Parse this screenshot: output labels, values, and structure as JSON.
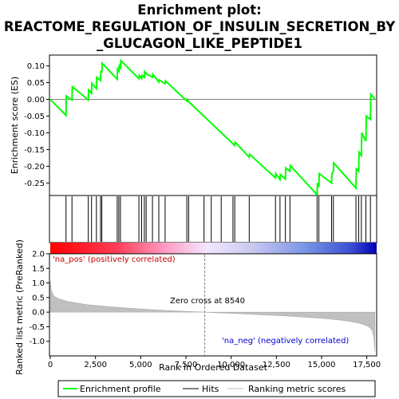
{
  "title_line1": "Enrichment plot:",
  "title_line2": "REACTOME_REGULATION_OF_INSULIN_SECRETION_BY",
  "title_line3": "_GLUCAGON_LIKE_PEPTIDE1",
  "chart_data": [
    {
      "type": "line",
      "panel": "enrichment-score",
      "ylabel": "Enrichment score (ES)",
      "xlim": [
        0,
        18000
      ],
      "ylim": [
        -0.285,
        0.13
      ],
      "yticks": [
        0.1,
        0.05,
        0.0,
        -0.05,
        -0.1,
        -0.15,
        -0.2,
        -0.25
      ],
      "ytick_labels": [
        "0.10",
        "0.05",
        "0.00",
        "-0.05",
        "-0.10",
        "-0.15",
        "-0.20",
        "-0.25"
      ],
      "series": [
        {
          "name": "Enrichment profile",
          "color": "#00ff00",
          "x": [
            0,
            870,
            880,
            1200,
            1220,
            2100,
            2120,
            2280,
            2300,
            2550,
            2570,
            2780,
            2800,
            2850,
            2870,
            3700,
            3720,
            3790,
            3810,
            3880,
            3900,
            4900,
            4920,
            5050,
            5070,
            5200,
            5220,
            5300,
            5320,
            5650,
            5670,
            6000,
            6020,
            6350,
            6370,
            7550,
            7570,
            7650,
            7670,
            10200,
            10220,
            11000,
            11020,
            12450,
            12470,
            12700,
            12720,
            13000,
            13020,
            13250,
            13270,
            14750,
            14770,
            14850,
            14870,
            15550,
            15570,
            15650,
            15670,
            16900,
            16920,
            17050,
            17070,
            17200,
            17220,
            17450,
            17470,
            17700,
            17720,
            17950
          ],
          "y": [
            0.0,
            -0.048,
            0.01,
            -0.002,
            0.038,
            -0.002,
            0.028,
            0.018,
            0.048,
            0.032,
            0.066,
            0.056,
            0.086,
            0.08,
            0.108,
            0.06,
            0.09,
            0.084,
            0.1,
            0.094,
            0.116,
            0.062,
            0.072,
            0.062,
            0.072,
            0.066,
            0.083,
            0.077,
            0.076,
            0.066,
            0.075,
            0.052,
            0.058,
            0.047,
            0.055,
            -0.005,
            0.0,
            -0.008,
            -0.008,
            -0.138,
            -0.128,
            -0.173,
            -0.164,
            -0.235,
            -0.222,
            -0.24,
            -0.225,
            -0.238,
            -0.205,
            -0.215,
            -0.198,
            -0.285,
            -0.25,
            -0.262,
            -0.222,
            -0.25,
            -0.222,
            -0.215,
            -0.19,
            -0.265,
            -0.208,
            -0.215,
            -0.158,
            -0.168,
            -0.1,
            -0.125,
            -0.05,
            -0.06,
            0.015,
            0.002
          ]
        }
      ]
    },
    {
      "type": "scatter",
      "panel": "hits",
      "series": [
        {
          "name": "Hits",
          "color": "#000000",
          "x": [
            870,
            1200,
            2100,
            2280,
            2550,
            2780,
            2850,
            3700,
            3790,
            3880,
            4900,
            5050,
            5200,
            5300,
            5650,
            6000,
            6350,
            7550,
            7650,
            8500,
            8900,
            9450,
            10100,
            10200,
            11000,
            12450,
            12700,
            13000,
            13250,
            14750,
            14850,
            15550,
            15650,
            16900,
            17050,
            17200,
            17450,
            17700
          ]
        }
      ]
    },
    {
      "type": "area",
      "panel": "ranked-list",
      "ylabel": "Ranked list metric (PreRanked)",
      "xlabel": "Rank in Ordered Dataset",
      "xlim": [
        0,
        18000
      ],
      "ylim": [
        -1.5,
        2.0
      ],
      "yticks": [
        2.0,
        1.5,
        1.0,
        0.5,
        0.0,
        -0.5,
        -1.0
      ],
      "ytick_labels": [
        "2.0",
        "1.5",
        "1.0",
        "0.5",
        "0.0",
        "-0.5",
        "-1.0"
      ],
      "xticks": [
        0,
        2500,
        5000,
        7500,
        10000,
        12500,
        15000,
        17500
      ],
      "xtick_labels": [
        "0",
        "2,500",
        "5,000",
        "7,500",
        "10,000",
        "12,500",
        "15,000",
        "17,500"
      ],
      "series": [
        {
          "name": "Ranking metric scores",
          "color": "#c0c0c0",
          "x": [
            0,
            50,
            200,
            500,
            1000,
            2000,
            3000,
            4000,
            5000,
            6000,
            7000,
            8000,
            8540,
            9000,
            10000,
            11000,
            12000,
            13000,
            14000,
            15000,
            16000,
            16500,
            17000,
            17300,
            17600,
            17800,
            17900,
            17950
          ],
          "y": [
            1.05,
            0.75,
            0.55,
            0.45,
            0.36,
            0.26,
            0.2,
            0.15,
            0.11,
            0.07,
            0.04,
            0.015,
            0.0,
            -0.015,
            -0.04,
            -0.07,
            -0.1,
            -0.13,
            -0.17,
            -0.21,
            -0.27,
            -0.31,
            -0.37,
            -0.42,
            -0.5,
            -0.62,
            -0.9,
            -1.35
          ]
        }
      ],
      "zero_cross": 8540,
      "annotations": [
        "Zero cross at 8540",
        "'na_pos' (positively correlated)",
        "'na_neg' (negatively correlated)"
      ]
    }
  ],
  "legend": [
    {
      "label": "Enrichment profile",
      "color": "#00ff00"
    },
    {
      "label": "Hits",
      "color": "#000000"
    },
    {
      "label": "Ranking metric scores",
      "color": "#c0c0c0"
    }
  ]
}
